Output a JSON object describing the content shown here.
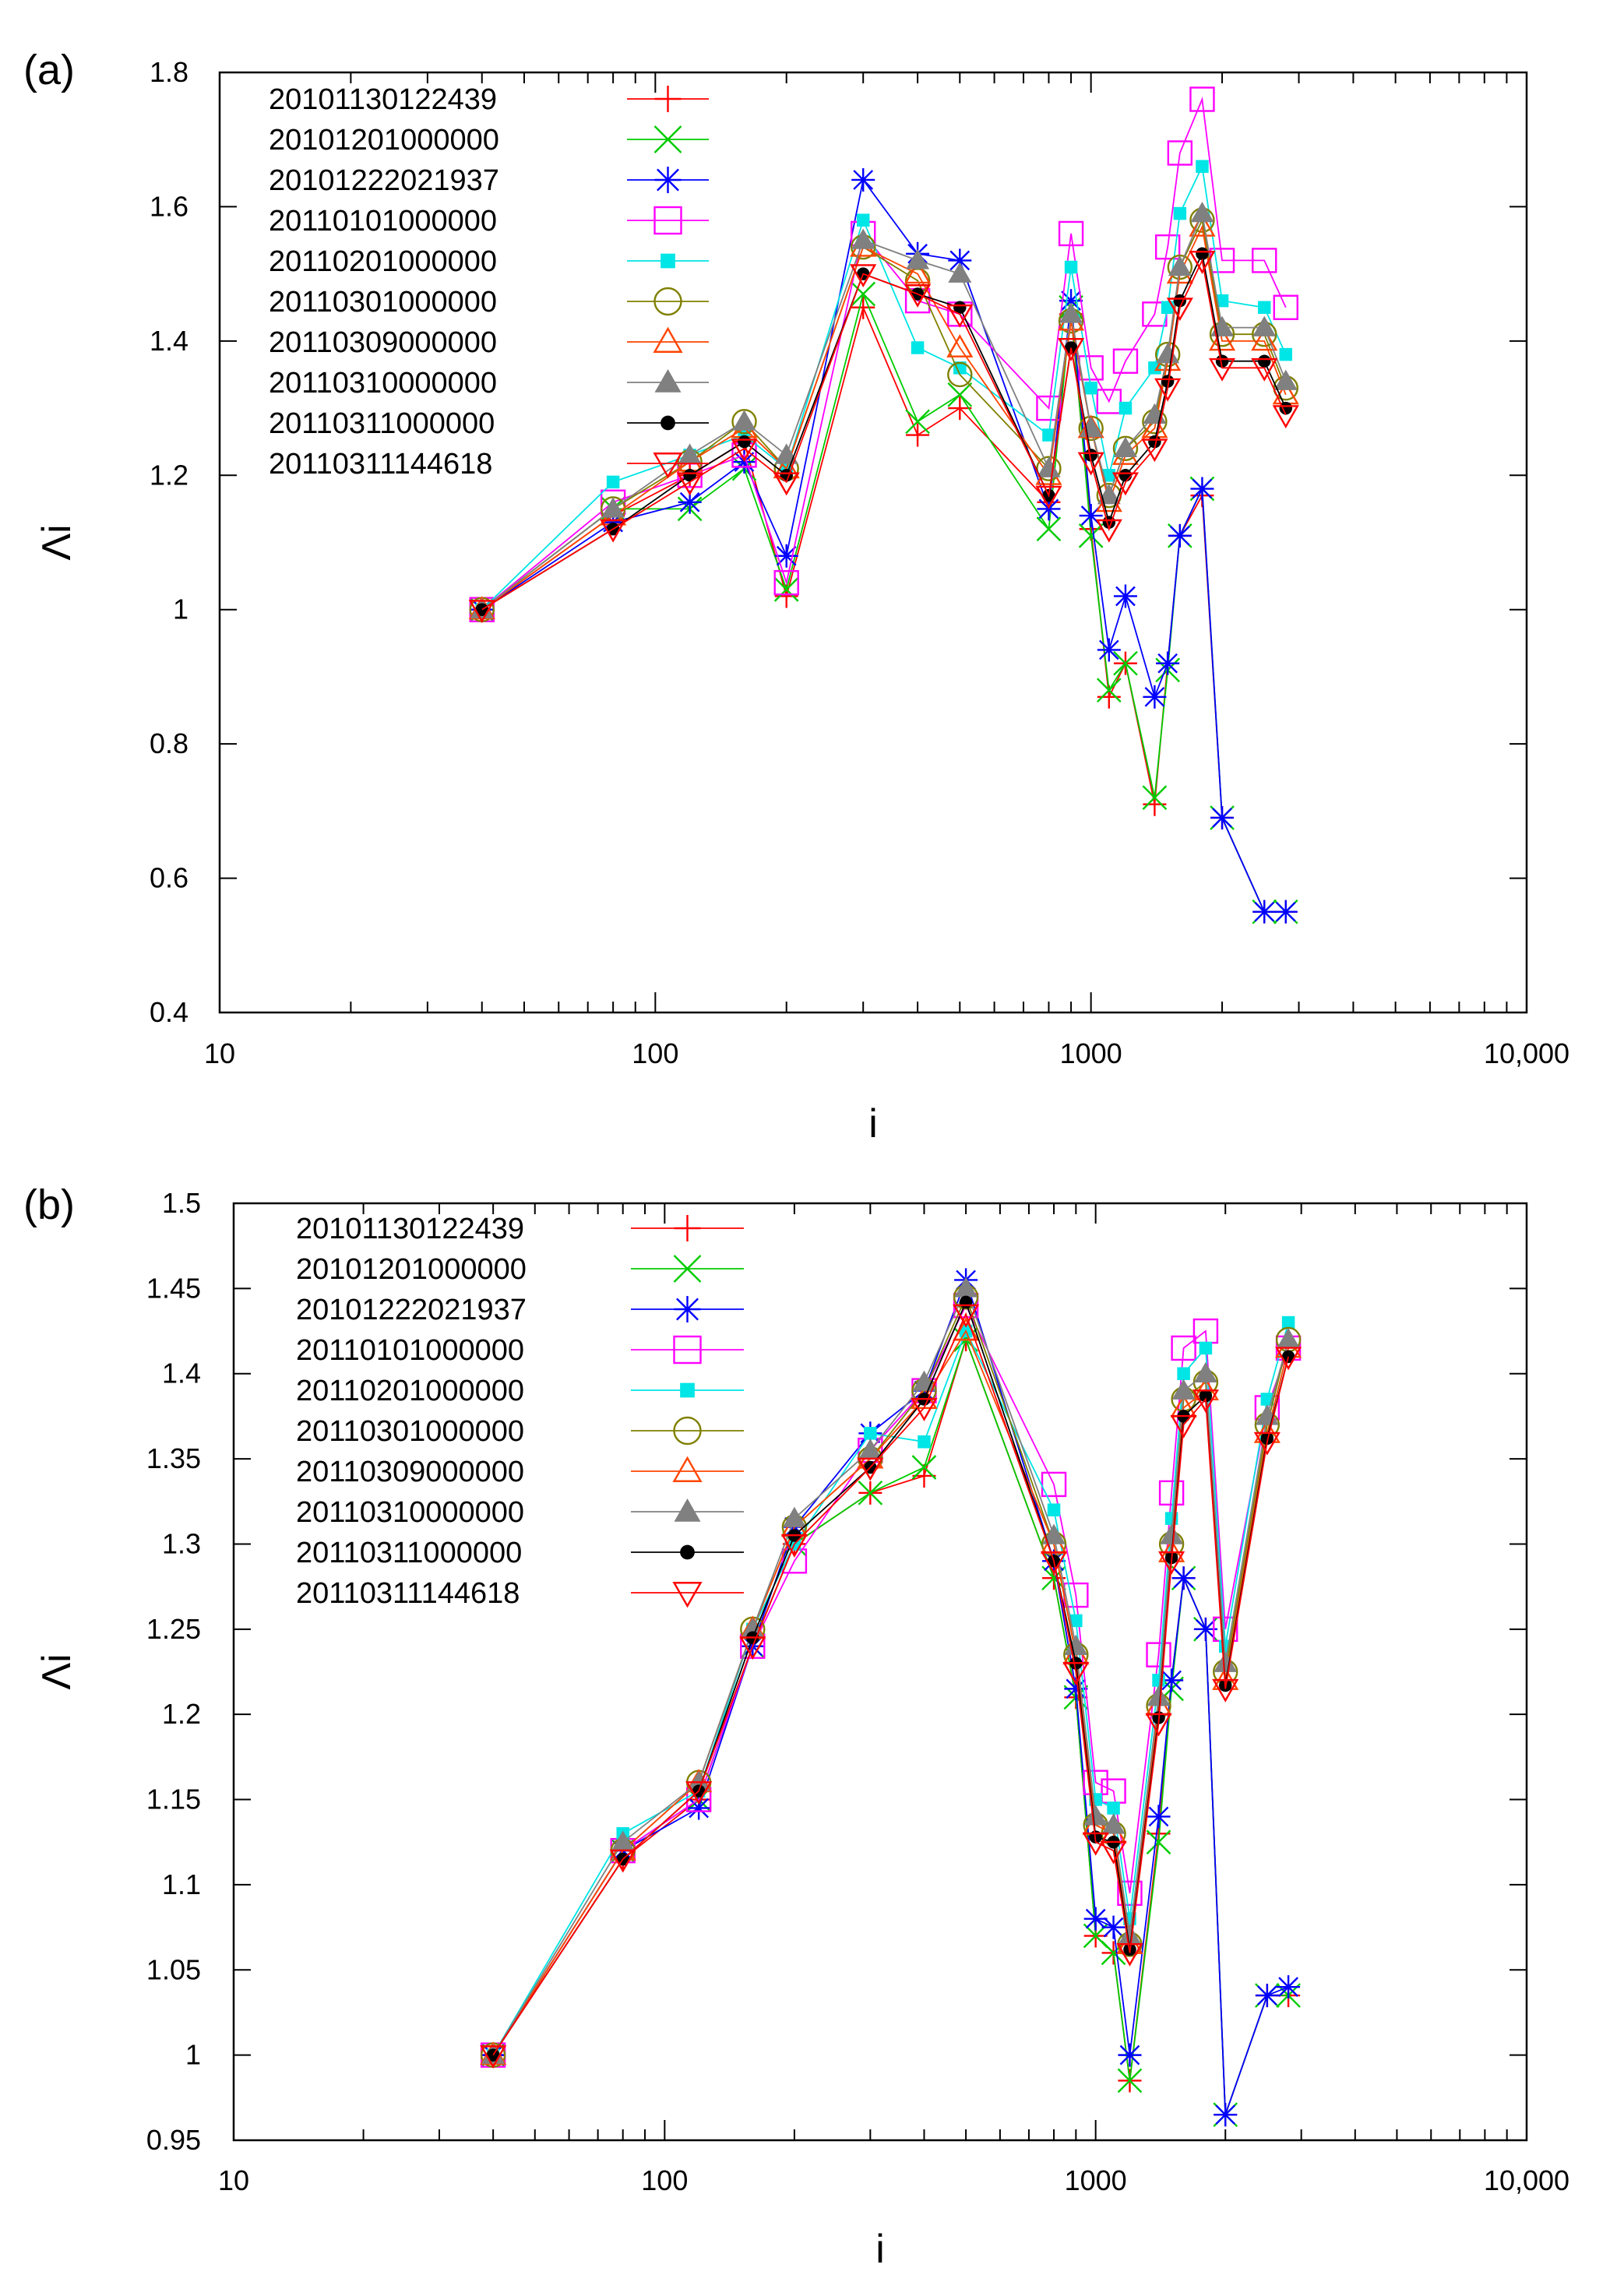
{
  "chart_data": [
    {
      "panel": "(a)",
      "type": "line",
      "xscale": "log",
      "xlabel": "i",
      "ylabel": "Λi",
      "xlim": [
        10,
        10000
      ],
      "ylim": [
        0.4,
        1.8
      ],
      "xticks": [
        10,
        100,
        1000,
        10000
      ],
      "xtick_labels": [
        "10",
        "100",
        "1000",
        "10,000"
      ],
      "yticks": [
        0.4,
        0.6,
        0.8,
        1.0,
        1.2,
        1.4,
        1.6,
        1.8
      ],
      "ytick_labels": [
        "0.4",
        "0.6",
        "0.8",
        "1",
        "1.2",
        "1.4",
        "1.6",
        "1.8"
      ],
      "legend_position": "top-left",
      "x": [
        40,
        80,
        120,
        160,
        200,
        300,
        400,
        500,
        800,
        900,
        1000,
        1100,
        1200,
        1400,
        1500,
        1600,
        1800,
        2000,
        2500,
        2800
      ],
      "series": [
        {
          "name": "20101130122439",
          "color": "#ff0000",
          "marker": "plus",
          "values": [
            1.0,
            1.14,
            1.2,
            1.25,
            1.02,
            1.45,
            1.26,
            1.3,
            1.16,
            1.44,
            1.12,
            0.87,
            0.92,
            0.71,
            0.92,
            1.11,
            1.17,
            0.69,
            0.55,
            0.55
          ]
        },
        {
          "name": "20101201000000",
          "color": "#00cc00",
          "marker": "x",
          "values": [
            1.0,
            1.15,
            1.15,
            1.21,
            1.03,
            1.47,
            1.28,
            1.32,
            1.12,
            1.45,
            1.11,
            0.88,
            0.92,
            0.72,
            0.91,
            1.11,
            1.18,
            0.69,
            0.55,
            0.55
          ]
        },
        {
          "name": "20101222021937",
          "color": "#0000ff",
          "marker": "star",
          "values": [
            1.0,
            1.13,
            1.16,
            1.22,
            1.08,
            1.64,
            1.53,
            1.52,
            1.15,
            1.46,
            1.14,
            0.94,
            1.02,
            0.87,
            0.92,
            1.11,
            1.18,
            0.69,
            0.55,
            0.55
          ]
        },
        {
          "name": "20110101000000",
          "color": "#ff00ff",
          "marker": "square-open",
          "values": [
            1.0,
            1.16,
            1.2,
            1.23,
            1.04,
            1.56,
            1.46,
            1.44,
            1.3,
            1.56,
            1.36,
            1.31,
            1.37,
            1.44,
            1.54,
            1.68,
            1.76,
            1.52,
            1.52,
            1.45
          ]
        },
        {
          "name": "20110201000000",
          "color": "#00e5e5",
          "marker": "square-filled",
          "values": [
            1.0,
            1.19,
            1.23,
            1.26,
            1.21,
            1.58,
            1.39,
            1.36,
            1.26,
            1.51,
            1.33,
            1.2,
            1.3,
            1.36,
            1.45,
            1.59,
            1.66,
            1.46,
            1.45,
            1.38
          ]
        },
        {
          "name": "20110301000000",
          "color": "#808000",
          "marker": "circle-open",
          "values": [
            1.0,
            1.15,
            1.22,
            1.28,
            1.21,
            1.54,
            1.49,
            1.35,
            1.21,
            1.43,
            1.27,
            1.17,
            1.24,
            1.28,
            1.38,
            1.51,
            1.58,
            1.41,
            1.41,
            1.33
          ]
        },
        {
          "name": "20110309000000",
          "color": "#ff4500",
          "marker": "triangle-open",
          "values": [
            1.0,
            1.14,
            1.22,
            1.27,
            1.21,
            1.54,
            1.5,
            1.39,
            1.2,
            1.43,
            1.27,
            1.16,
            1.23,
            1.27,
            1.37,
            1.5,
            1.57,
            1.4,
            1.4,
            1.32
          ]
        },
        {
          "name": "20110310000000",
          "color": "#808080",
          "marker": "triangle-filled",
          "values": [
            1.0,
            1.15,
            1.23,
            1.28,
            1.23,
            1.55,
            1.52,
            1.5,
            1.21,
            1.44,
            1.27,
            1.17,
            1.24,
            1.29,
            1.38,
            1.51,
            1.59,
            1.42,
            1.42,
            1.34
          ]
        },
        {
          "name": "20110311000000",
          "color": "#000000",
          "marker": "circle-filled",
          "values": [
            1.0,
            1.12,
            1.2,
            1.25,
            1.2,
            1.5,
            1.47,
            1.45,
            1.17,
            1.39,
            1.23,
            1.13,
            1.2,
            1.25,
            1.34,
            1.46,
            1.53,
            1.37,
            1.37,
            1.3
          ]
        },
        {
          "name": "20110311144618",
          "color": "#ff0000",
          "marker": "triangle-down-open",
          "values": [
            1.0,
            1.12,
            1.19,
            1.24,
            1.19,
            1.5,
            1.47,
            1.44,
            1.17,
            1.39,
            1.22,
            1.12,
            1.19,
            1.24,
            1.33,
            1.45,
            1.52,
            1.36,
            1.36,
            1.29
          ]
        }
      ]
    },
    {
      "panel": "(b)",
      "type": "line",
      "xscale": "log",
      "xlabel": "i",
      "ylabel": "Λi",
      "xlim": [
        10,
        10000
      ],
      "ylim": [
        0.95,
        1.5
      ],
      "xticks": [
        10,
        100,
        1000,
        10000
      ],
      "xtick_labels": [
        "10",
        "100",
        "1000",
        "10,000"
      ],
      "yticks": [
        0.95,
        1.0,
        1.05,
        1.1,
        1.15,
        1.2,
        1.25,
        1.3,
        1.35,
        1.4,
        1.45,
        1.5
      ],
      "ytick_labels": [
        "0.95",
        "1",
        "1.05",
        "1.1",
        "1.15",
        "1.2",
        "1.25",
        "1.3",
        "1.35",
        "1.4",
        "1.45",
        "1.5"
      ],
      "legend_position": "top-left",
      "x": [
        40,
        80,
        120,
        160,
        200,
        300,
        400,
        500,
        800,
        900,
        1000,
        1100,
        1200,
        1400,
        1500,
        1600,
        1800,
        2000,
        2500,
        2800
      ],
      "series": [
        {
          "name": "20101130122439",
          "color": "#ff0000",
          "marker": "plus",
          "values": [
            1.0,
            1.115,
            1.15,
            1.24,
            1.3,
            1.33,
            1.34,
            1.42,
            1.28,
            1.21,
            1.07,
            1.06,
            0.985,
            1.13,
            1.22,
            1.28,
            1.25,
            0.965,
            1.035,
            1.035
          ]
        },
        {
          "name": "20101201000000",
          "color": "#00cc00",
          "marker": "x",
          "values": [
            1.0,
            1.12,
            1.15,
            1.24,
            1.3,
            1.33,
            1.345,
            1.42,
            1.28,
            1.21,
            1.07,
            1.06,
            0.985,
            1.125,
            1.215,
            1.28,
            1.25,
            0.965,
            1.035,
            1.035
          ]
        },
        {
          "name": "20101222021937",
          "color": "#0000ff",
          "marker": "star",
          "values": [
            1.0,
            1.12,
            1.145,
            1.24,
            1.31,
            1.365,
            1.39,
            1.455,
            1.29,
            1.215,
            1.08,
            1.075,
            1.0,
            1.14,
            1.22,
            1.28,
            1.25,
            0.965,
            1.035,
            1.04
          ]
        },
        {
          "name": "20110101000000",
          "color": "#ff00ff",
          "marker": "square-open",
          "values": [
            1.0,
            1.12,
            1.15,
            1.24,
            1.29,
            1.355,
            1.39,
            1.44,
            1.335,
            1.27,
            1.16,
            1.155,
            1.095,
            1.235,
            1.33,
            1.415,
            1.425,
            1.25,
            1.38,
            1.415
          ]
        },
        {
          "name": "20110201000000",
          "color": "#00e5e5",
          "marker": "square-filled",
          "values": [
            1.0,
            1.13,
            1.155,
            1.25,
            1.3,
            1.365,
            1.36,
            1.425,
            1.32,
            1.255,
            1.15,
            1.145,
            1.08,
            1.22,
            1.315,
            1.4,
            1.415,
            1.24,
            1.385,
            1.43
          ]
        },
        {
          "name": "20110301000000",
          "color": "#808000",
          "marker": "circle-open",
          "values": [
            1.0,
            1.12,
            1.16,
            1.25,
            1.31,
            1.35,
            1.39,
            1.445,
            1.3,
            1.235,
            1.135,
            1.13,
            1.065,
            1.205,
            1.3,
            1.385,
            1.395,
            1.225,
            1.37,
            1.42
          ]
        },
        {
          "name": "20110309000000",
          "color": "#ff4500",
          "marker": "triangle-open",
          "values": [
            1.0,
            1.12,
            1.16,
            1.25,
            1.31,
            1.35,
            1.385,
            1.425,
            1.3,
            1.235,
            1.135,
            1.13,
            1.065,
            1.205,
            1.295,
            1.38,
            1.39,
            1.22,
            1.365,
            1.415
          ]
        },
        {
          "name": "20110310000000",
          "color": "#808080",
          "marker": "triangle-filled",
          "values": [
            1.0,
            1.125,
            1.16,
            1.25,
            1.315,
            1.355,
            1.395,
            1.45,
            1.305,
            1.24,
            1.14,
            1.135,
            1.07,
            1.21,
            1.305,
            1.39,
            1.4,
            1.23,
            1.375,
            1.42
          ]
        },
        {
          "name": "20110311000000",
          "color": "#000000",
          "marker": "circle-filled",
          "values": [
            1.0,
            1.115,
            1.155,
            1.245,
            1.305,
            1.345,
            1.385,
            1.442,
            1.29,
            1.23,
            1.128,
            1.125,
            1.062,
            1.198,
            1.292,
            1.375,
            1.387,
            1.217,
            1.362,
            1.41
          ]
        },
        {
          "name": "20110311144618",
          "color": "#ff0000",
          "marker": "triangle-down-open",
          "values": [
            1.0,
            1.115,
            1.155,
            1.24,
            1.3,
            1.345,
            1.38,
            1.435,
            1.29,
            1.225,
            1.125,
            1.12,
            1.06,
            1.195,
            1.29,
            1.37,
            1.385,
            1.215,
            1.36,
            1.41
          ]
        }
      ]
    }
  ]
}
